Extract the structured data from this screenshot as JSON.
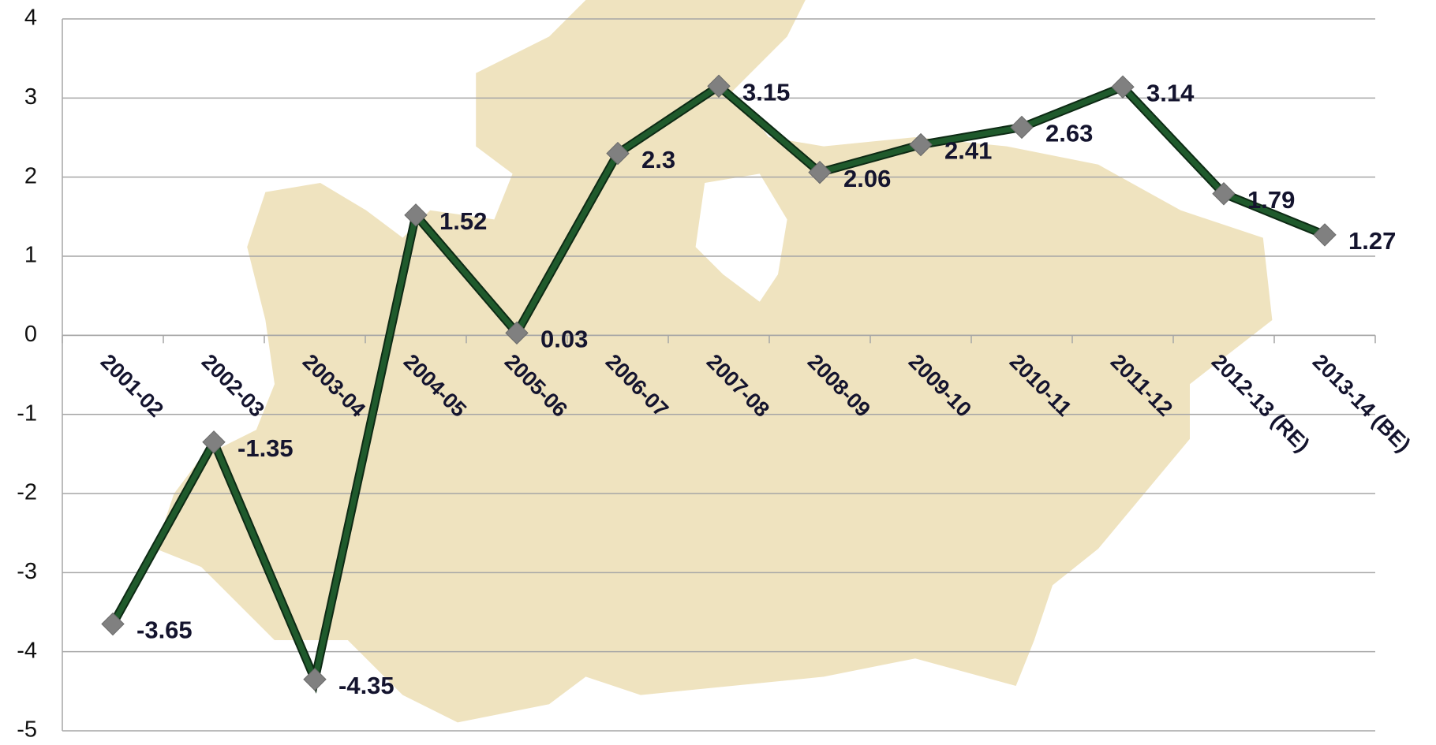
{
  "chart_data": {
    "type": "line",
    "categories": [
      "2001-02",
      "2002-03",
      "2003-04",
      "2004-05",
      "2005-06",
      "2006-07",
      "2007-08",
      "2008-09",
      "2009-10",
      "2010-11",
      "2011-12",
      "2012-13 (RE)",
      "2013-14 (BE)"
    ],
    "series": [
      {
        "color": "#1f5a2c",
        "values": [
          -3.65,
          -1.35,
          -4.35,
          1.52,
          0.03,
          2.3,
          3.15,
          2.06,
          2.41,
          2.63,
          3.14,
          1.79,
          1.27
        ]
      }
    ],
    "ylim": [
      -5,
      4
    ],
    "yticks": [
      -5,
      -4,
      -3,
      -2,
      -1,
      0,
      1,
      2,
      3,
      4
    ],
    "grid": true
  }
}
